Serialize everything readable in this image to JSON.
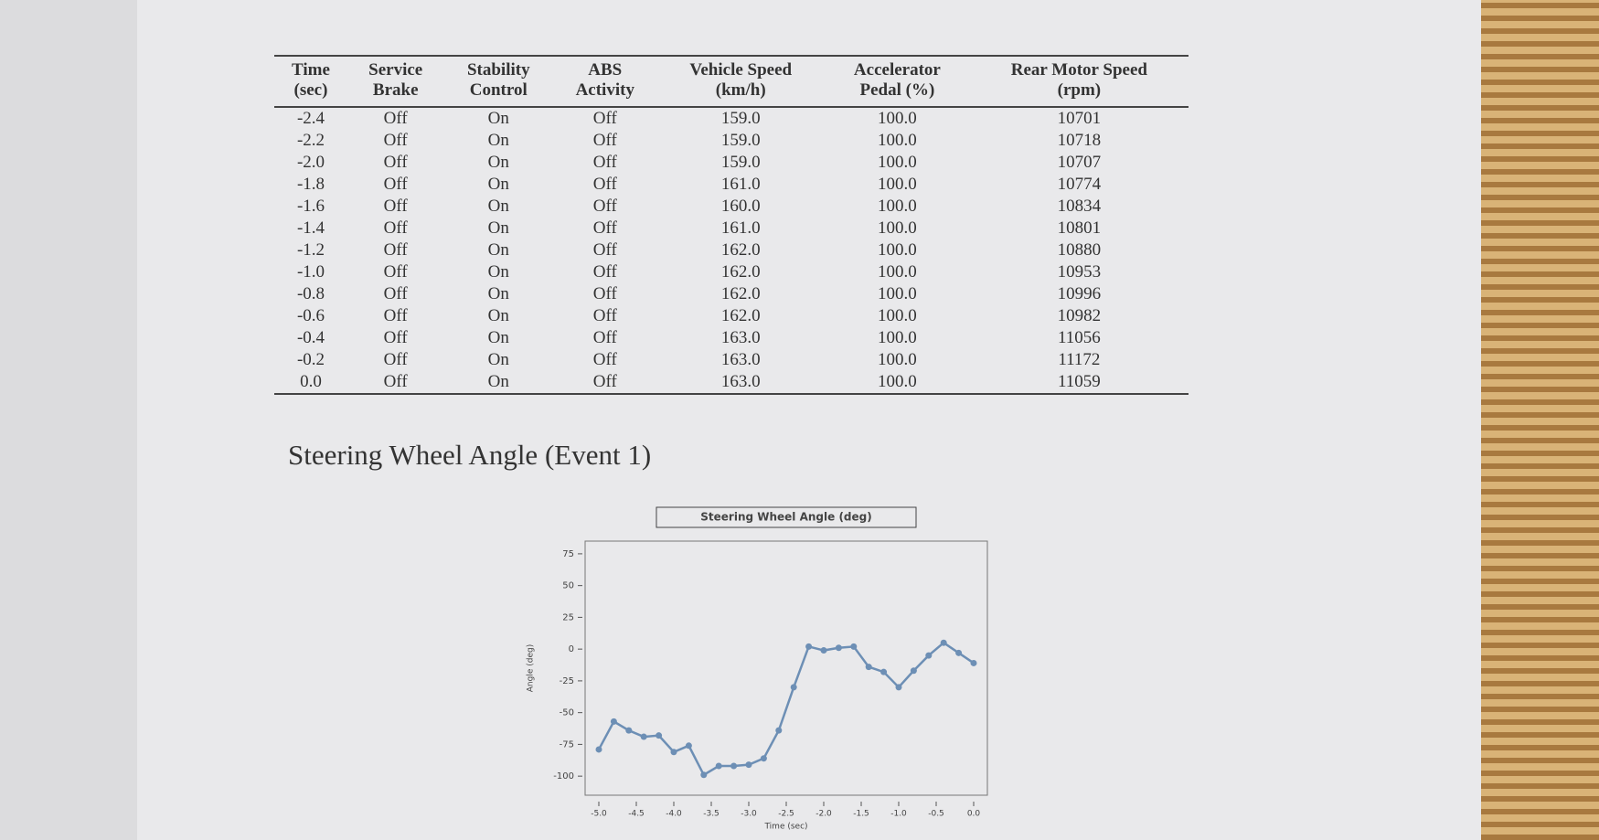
{
  "table": {
    "header": [
      "Time\n(sec)",
      "Service\nBrake",
      "Stability\nControl",
      "ABS\nActivity",
      "Vehicle Speed\n(km/h)",
      "Accelerator\nPedal (%)",
      "Rear Motor Speed\n(rpm)"
    ],
    "rows": [
      [
        "-2.4",
        "Off",
        "On",
        "Off",
        "159.0",
        "100.0",
        "10701"
      ],
      [
        "-2.2",
        "Off",
        "On",
        "Off",
        "159.0",
        "100.0",
        "10718"
      ],
      [
        "-2.0",
        "Off",
        "On",
        "Off",
        "159.0",
        "100.0",
        "10707"
      ],
      [
        "-1.8",
        "Off",
        "On",
        "Off",
        "161.0",
        "100.0",
        "10774"
      ],
      [
        "-1.6",
        "Off",
        "On",
        "Off",
        "160.0",
        "100.0",
        "10834"
      ],
      [
        "-1.4",
        "Off",
        "On",
        "Off",
        "161.0",
        "100.0",
        "10801"
      ],
      [
        "-1.2",
        "Off",
        "On",
        "Off",
        "162.0",
        "100.0",
        "10880"
      ],
      [
        "-1.0",
        "Off",
        "On",
        "Off",
        "162.0",
        "100.0",
        "10953"
      ],
      [
        "-0.8",
        "Off",
        "On",
        "Off",
        "162.0",
        "100.0",
        "10996"
      ],
      [
        "-0.6",
        "Off",
        "On",
        "Off",
        "162.0",
        "100.0",
        "10982"
      ],
      [
        "-0.4",
        "Off",
        "On",
        "Off",
        "163.0",
        "100.0",
        "11056"
      ],
      [
        "-0.2",
        "Off",
        "On",
        "Off",
        "163.0",
        "100.0",
        "11172"
      ],
      [
        "0.0",
        "Off",
        "On",
        "Off",
        "163.0",
        "100.0",
        "11059"
      ]
    ]
  },
  "heading": "Steering Wheel Angle (Event 1)",
  "chart_data": {
    "type": "line",
    "title": "Steering Wheel Angle (deg)",
    "x_label": "Time (sec)",
    "y_label": "Angle (deg)",
    "x": [
      -5.0,
      -4.8,
      -4.6,
      -4.4,
      -4.2,
      -4.0,
      -3.8,
      -3.6,
      -3.4,
      -3.2,
      -3.0,
      -2.8,
      -2.6,
      -2.4,
      -2.2,
      -2.0,
      -1.8,
      -1.6,
      -1.4,
      -1.2,
      -1.0,
      -0.8,
      -0.6,
      -0.4,
      -0.2,
      0.0
    ],
    "series": [
      {
        "name": "Steering Wheel Angle (deg)",
        "color": "#6d8fb5",
        "values": [
          -79,
          -57,
          -64,
          -69,
          -68,
          -81,
          -76,
          -99,
          -92,
          -92,
          -91,
          -86,
          -64,
          -30,
          2,
          -1,
          1,
          2,
          -14,
          -18,
          -30,
          -17,
          -5,
          5,
          -3,
          -11
        ]
      }
    ],
    "xlim": [
      -5,
      0
    ],
    "ylim": [
      -115,
      85
    ],
    "xticks": [
      {
        "value": -5,
        "label": "-5.0"
      },
      {
        "value": -4.5,
        "label": "-4.5"
      },
      {
        "value": -4,
        "label": "-4.0"
      },
      {
        "value": -3.5,
        "label": "-3.5"
      },
      {
        "value": -3,
        "label": "-3.0"
      },
      {
        "value": -2.5,
        "label": "-2.5"
      },
      {
        "value": -2,
        "label": "-2.0"
      },
      {
        "value": -1.5,
        "label": "-1.5"
      },
      {
        "value": -1,
        "label": "-1.0"
      },
      {
        "value": -0.5,
        "label": "-0.5"
      },
      {
        "value": 0,
        "label": "0.0"
      }
    ],
    "yticks": [
      75,
      50,
      25,
      0,
      -25,
      -50,
      -75,
      -100
    ],
    "grid": false
  }
}
